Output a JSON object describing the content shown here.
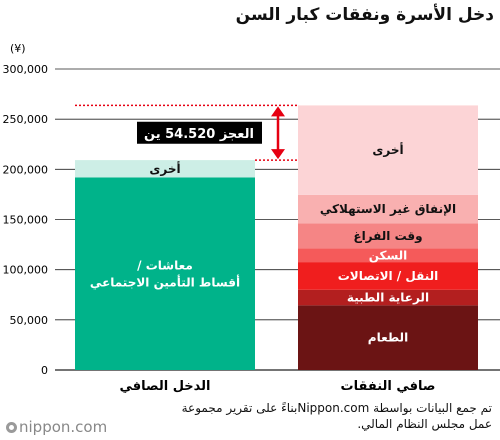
{
  "chart_data": {
    "type": "bar",
    "title": "دخل الأسرة ونفقات كبار السن",
    "unit_label": "(¥)",
    "ylim": [
      0,
      300000
    ],
    "y_ticks": [
      "0",
      "50,000",
      "100,000",
      "150,000",
      "200,000",
      "250,000",
      "300,000"
    ],
    "categories": [
      "الدخل الصافي",
      "صافي النفقات"
    ],
    "income_stack": [
      {
        "label": "معاشات / أقساط التأمين الاجتماعي",
        "value": 191880,
        "color": "#00b38a",
        "text_color": "#ffffff"
      },
      {
        "label": "أخرى",
        "value": 17319,
        "color": "#cdeee6",
        "text_color": "#111111"
      }
    ],
    "expense_stack": [
      {
        "label": "الطعام",
        "value": 64444,
        "color": "#6b1414",
        "text_color": "#ffffff"
      },
      {
        "label": "الرعاية الطبية",
        "value": 15512,
        "color": "#b31f1f",
        "text_color": "#ffffff"
      },
      {
        "label": "النقل / الاتصالات",
        "value": 27576,
        "color": "#f01e1e",
        "text_color": "#ffffff"
      },
      {
        "label": "السكن",
        "value": 13656,
        "color": "#f55a5a",
        "text_color": "#ffffff"
      },
      {
        "label": "وقت الفراغ",
        "value": 25077,
        "color": "#f58585",
        "text_color": "#111111"
      },
      {
        "label": "الإنفاق غير الاستهلاكي",
        "value": 28240,
        "color": "#f9b0b0",
        "text_color": "#111111"
      },
      {
        "label": "أخرى",
        "value": 89214,
        "color": "#fcd4d6",
        "text_color": "#111111"
      }
    ],
    "deficit": {
      "label": "العجز 54.520 ين",
      "value": 54520
    }
  },
  "source_note": "تم جمع البيانات بواسطة Nippon.comبناءً على تقرير مجموعة عمل مجلس النظام المالي.",
  "brand": "nippon.com",
  "colors": {
    "accent_red": "#e60012",
    "grid": "#111111"
  }
}
